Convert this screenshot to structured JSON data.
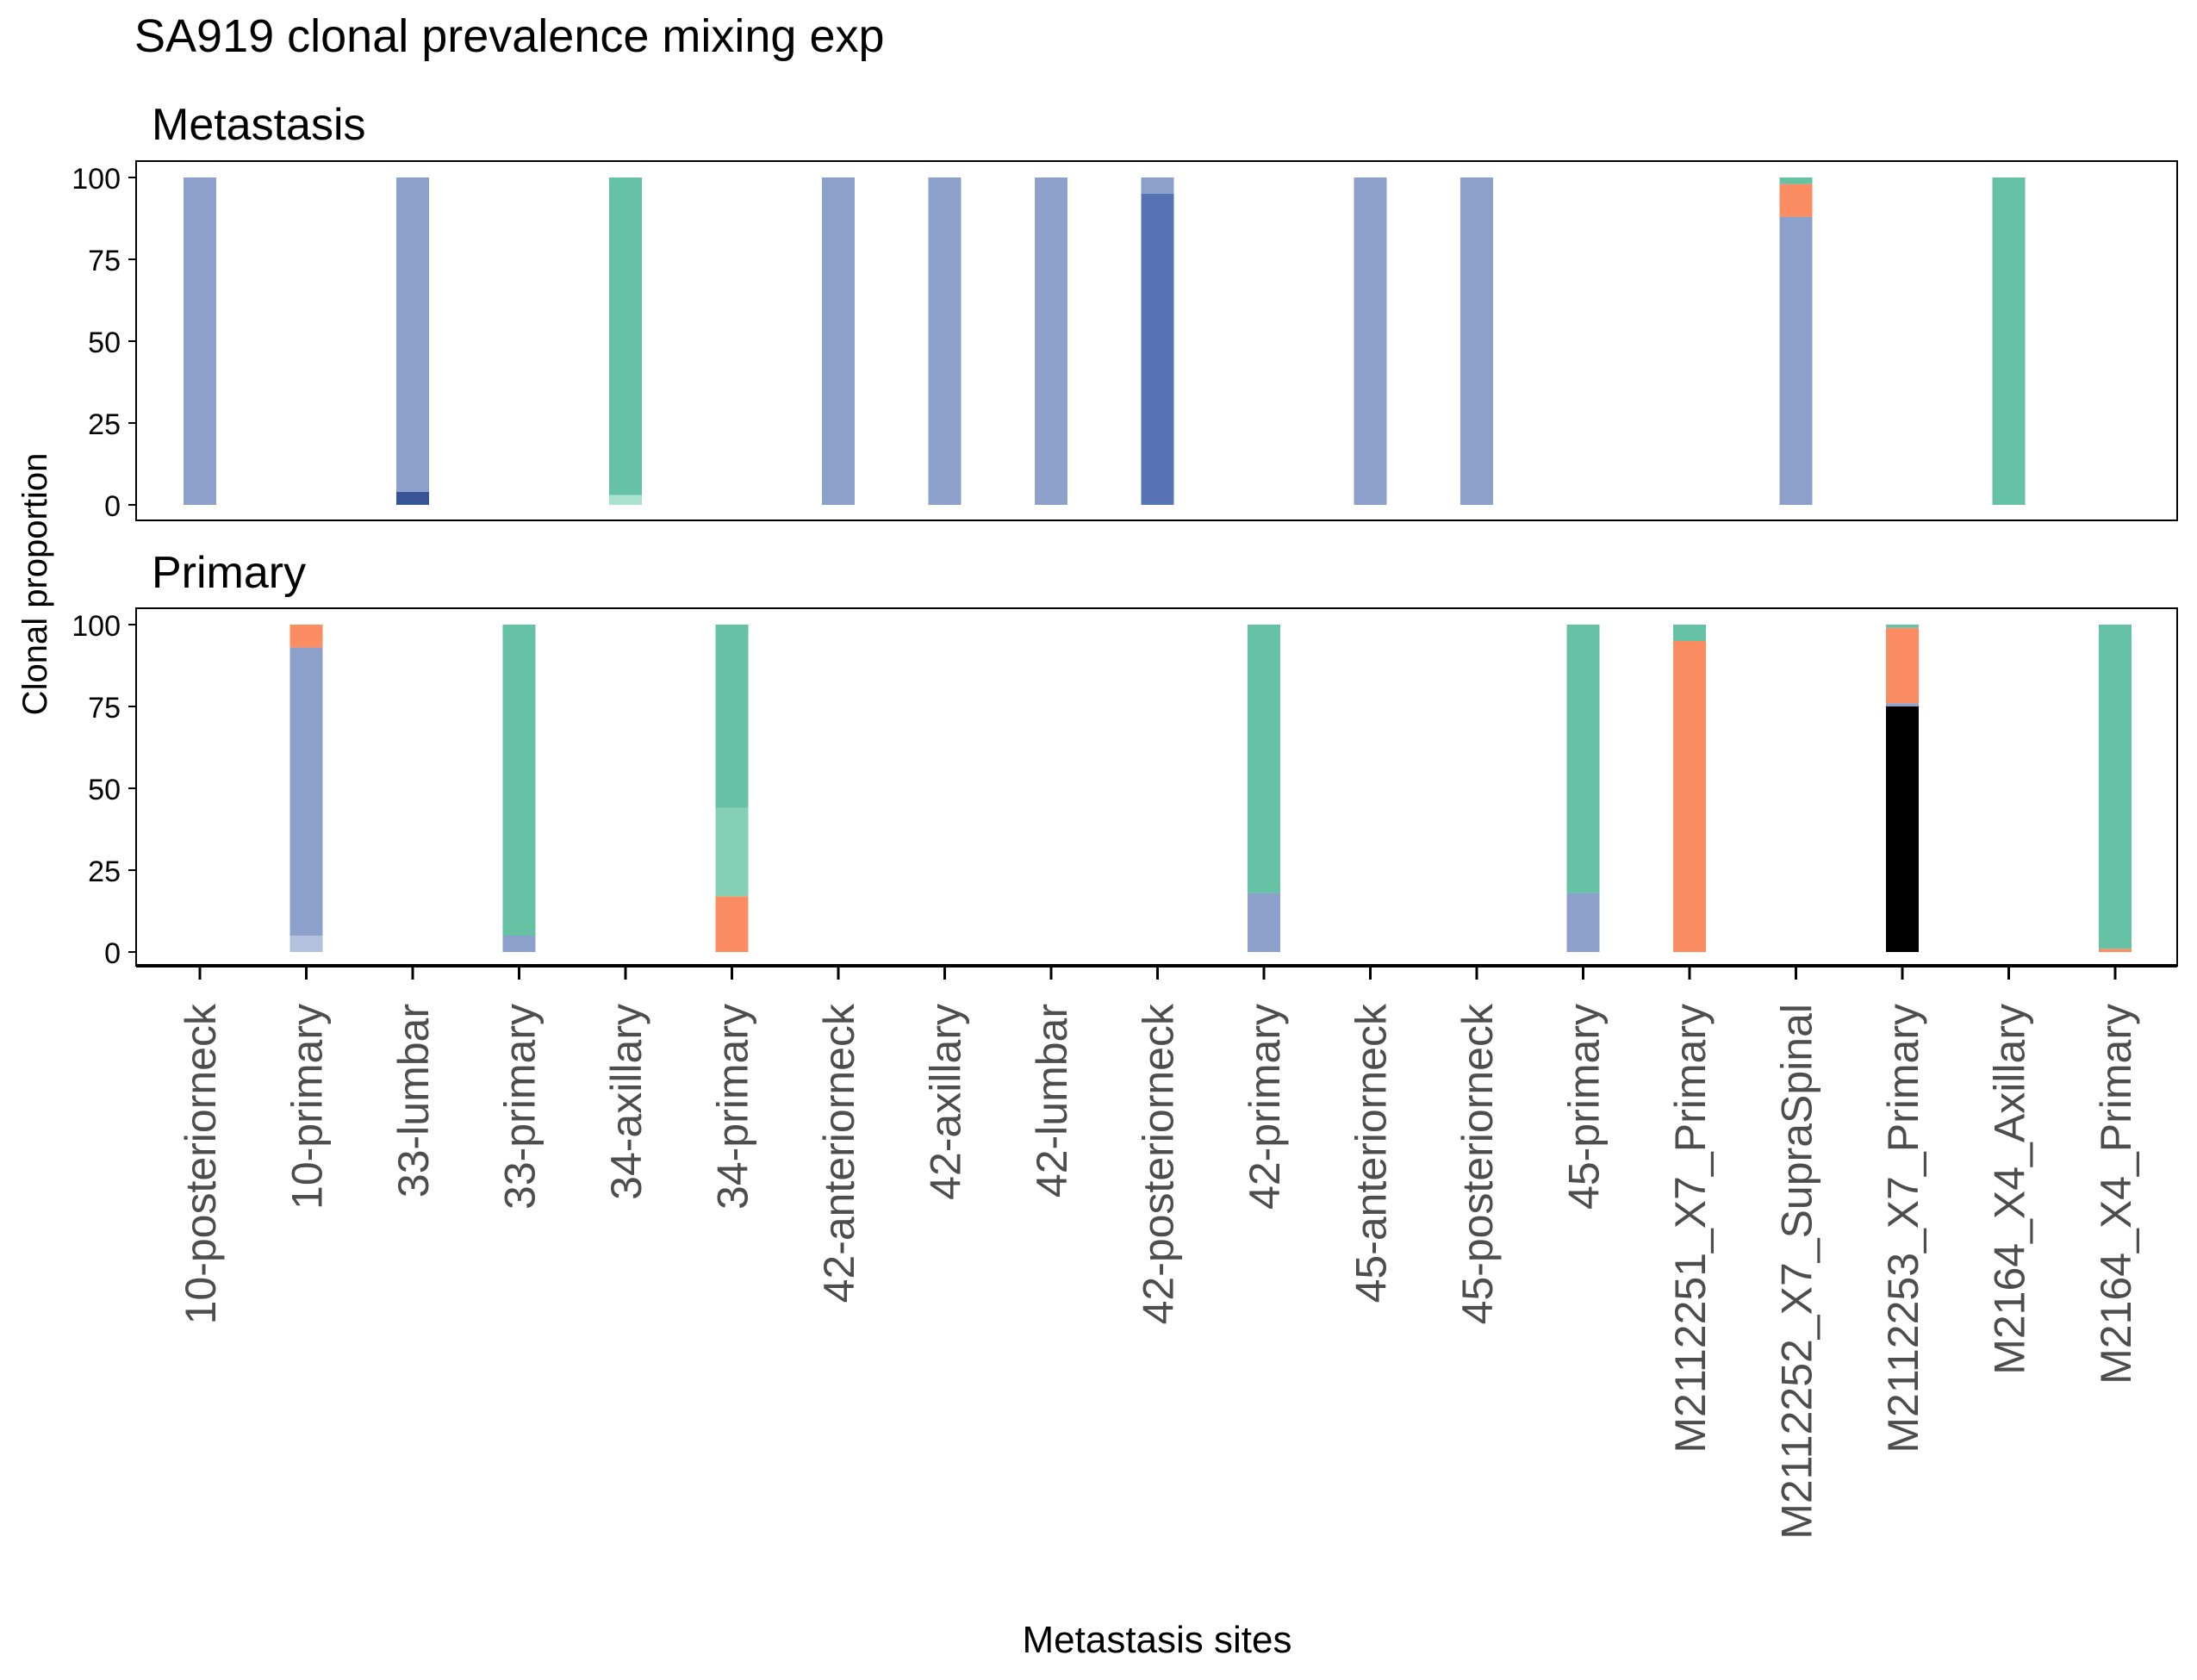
{
  "chart_data": {
    "type": "bar",
    "stacked": true,
    "title": "SA919 clonal prevalence mixing exp",
    "xlabel": "Metastasis sites",
    "ylabel": "Clonal proportion",
    "ylim": [
      0,
      100
    ],
    "yticks": [
      0,
      25,
      50,
      75,
      100
    ],
    "grid": false,
    "legend": "none",
    "categories": [
      "10-posteriorneck",
      "10-primary",
      "33-lumbar",
      "33-primary",
      "34-axillary",
      "34-primary",
      "42-anteriorneck",
      "42-axillary",
      "42-lumbar",
      "42-posteriorneck",
      "42-primary",
      "45-anteriorneck",
      "45-posteriorneck",
      "45-primary",
      "M2112251_X7_Primary",
      "M2112252_X7_SupraSpinal",
      "M2112253_X7_Primary",
      "M2164_X4_Axillary",
      "M2164_X4_Primary"
    ],
    "panels": [
      {
        "name": "Metastasis",
        "bars": [
          {
            "category": "10-posteriorneck",
            "segments": [
              {
                "value": 100,
                "color": "#8da0cb"
              }
            ]
          },
          {
            "category": "33-lumbar",
            "segments": [
              {
                "value": 4,
                "color": "#3a5498"
              },
              {
                "value": 96,
                "color": "#8da0cb"
              }
            ]
          },
          {
            "category": "34-axillary",
            "segments": [
              {
                "value": 3,
                "color": "#a8e2cf"
              },
              {
                "value": 97,
                "color": "#66c2a5"
              }
            ]
          },
          {
            "category": "42-anteriorneck",
            "segments": [
              {
                "value": 100,
                "color": "#8da0cb"
              }
            ]
          },
          {
            "category": "42-axillary",
            "segments": [
              {
                "value": 100,
                "color": "#8da0cb"
              }
            ]
          },
          {
            "category": "42-lumbar",
            "segments": [
              {
                "value": 100,
                "color": "#8da0cb"
              }
            ]
          },
          {
            "category": "42-posteriorneck",
            "segments": [
              {
                "value": 95,
                "color": "#5873b4"
              },
              {
                "value": 5,
                "color": "#8da0cb"
              }
            ]
          },
          {
            "category": "45-anteriorneck",
            "segments": [
              {
                "value": 100,
                "color": "#8da0cb"
              }
            ]
          },
          {
            "category": "45-posteriorneck",
            "segments": [
              {
                "value": 100,
                "color": "#8da0cb"
              }
            ]
          },
          {
            "category": "M2112252_X7_SupraSpinal",
            "segments": [
              {
                "value": 88,
                "color": "#8da0cb"
              },
              {
                "value": 10,
                "color": "#fc8d62"
              },
              {
                "value": 2,
                "color": "#66c2a5"
              }
            ]
          },
          {
            "category": "M2164_X4_Axillary",
            "segments": [
              {
                "value": 100,
                "color": "#66c2a5"
              }
            ]
          }
        ]
      },
      {
        "name": "Primary",
        "bars": [
          {
            "category": "10-primary",
            "segments": [
              {
                "value": 5,
                "color": "#b4c1de"
              },
              {
                "value": 88,
                "color": "#8da0cb"
              },
              {
                "value": 7,
                "color": "#fc8d62"
              }
            ]
          },
          {
            "category": "33-primary",
            "segments": [
              {
                "value": 5,
                "color": "#8da0cb"
              },
              {
                "value": 95,
                "color": "#66c2a5"
              }
            ]
          },
          {
            "category": "34-primary",
            "segments": [
              {
                "value": 17,
                "color": "#fc8d62"
              },
              {
                "value": 27,
                "color": "#85d0b7"
              },
              {
                "value": 56,
                "color": "#66c2a5"
              }
            ]
          },
          {
            "category": "42-primary",
            "segments": [
              {
                "value": 18,
                "color": "#8da0cb"
              },
              {
                "value": 82,
                "color": "#66c2a5"
              }
            ]
          },
          {
            "category": "45-primary",
            "segments": [
              {
                "value": 18,
                "color": "#8da0cb"
              },
              {
                "value": 82,
                "color": "#66c2a5"
              }
            ]
          },
          {
            "category": "M2112251_X7_Primary",
            "segments": [
              {
                "value": 95,
                "color": "#fc8d62"
              },
              {
                "value": 5,
                "color": "#66c2a5"
              }
            ]
          },
          {
            "category": "M2112253_X7_Primary",
            "segments": [
              {
                "value": 75,
                "color": "#000000"
              },
              {
                "value": 1,
                "color": "#8da0cb"
              },
              {
                "value": 23,
                "color": "#fc8d62"
              },
              {
                "value": 1,
                "color": "#66c2a5"
              }
            ]
          },
          {
            "category": "M2164_X4_Primary",
            "segments": [
              {
                "value": 1,
                "color": "#fc8d62"
              },
              {
                "value": 99,
                "color": "#66c2a5"
              }
            ]
          }
        ]
      }
    ]
  }
}
